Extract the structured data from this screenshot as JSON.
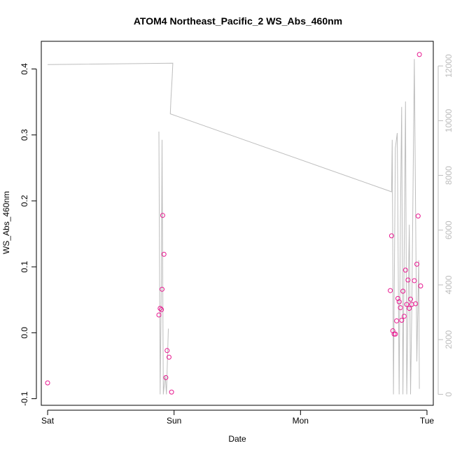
{
  "chart_data": {
    "type": "scatter",
    "title": "ATOM4 Northeast_Pacific_2 WS_Abs_460nm",
    "xlabel": "Date",
    "ylabel": "WS_Abs_460nm",
    "x_ticks": [
      "Sat",
      "Sun",
      "Mon",
      "Tue"
    ],
    "x_tick_values": [
      0,
      1,
      2,
      3
    ],
    "xlim": [
      -0.05,
      3.05
    ],
    "ylim": [
      -0.11,
      0.442
    ],
    "y_ticks": [
      -0.1,
      0.0,
      0.1,
      0.2,
      0.3,
      0.4
    ],
    "y_tick_labels": [
      "-0.1",
      "0.0",
      "0.1",
      "0.2",
      "0.3",
      "0.4"
    ],
    "y2lim": [
      -400,
      12900
    ],
    "y2_ticks": [
      0,
      2000,
      4000,
      6000,
      8000,
      10000,
      12000
    ],
    "y2_tick_labels": [
      "0",
      "2000",
      "4000",
      "6000",
      "8000",
      "10000",
      "12000"
    ],
    "grid": false,
    "series": [
      {
        "marker": "open-circle",
        "color": "#e8178f",
        "axis": "left",
        "points": [
          [
            0.0,
            -0.076
          ],
          [
            0.88,
            0.027
          ],
          [
            0.89,
            0.037
          ],
          [
            0.9,
            0.035
          ],
          [
            0.905,
            0.066
          ],
          [
            0.91,
            0.178
          ],
          [
            0.92,
            0.119
          ],
          [
            0.935,
            -0.068
          ],
          [
            0.945,
            -0.027
          ],
          [
            0.96,
            -0.037
          ],
          [
            0.98,
            -0.09
          ],
          [
            2.72,
            0.147
          ],
          [
            2.71,
            0.064
          ],
          [
            2.73,
            0.003
          ],
          [
            2.74,
            -0.002
          ],
          [
            2.75,
            -0.002
          ],
          [
            2.76,
            0.018
          ],
          [
            2.77,
            0.052
          ],
          [
            2.78,
            0.047
          ],
          [
            2.79,
            0.038
          ],
          [
            2.8,
            0.019
          ],
          [
            2.81,
            0.063
          ],
          [
            2.82,
            0.025
          ],
          [
            2.83,
            0.095
          ],
          [
            2.84,
            0.043
          ],
          [
            2.85,
            0.08
          ],
          [
            2.86,
            0.037
          ],
          [
            2.87,
            0.051
          ],
          [
            2.88,
            0.043
          ],
          [
            2.9,
            0.079
          ],
          [
            2.91,
            0.044
          ],
          [
            2.92,
            0.104
          ],
          [
            2.93,
            0.177
          ],
          [
            2.94,
            0.422
          ],
          [
            2.95,
            0.071
          ]
        ]
      },
      {
        "color": "#bdbdbd",
        "axis": "right",
        "line": true,
        "points": [
          [
            0.0,
            12050
          ],
          [
            0.99,
            12100
          ],
          [
            0.985,
            11600
          ],
          [
            0.975,
            10800
          ],
          [
            0.97,
            10250
          ],
          [
            2.72,
            7400
          ],
          [
            2.725,
            9300
          ],
          [
            2.735,
            0
          ],
          [
            2.75,
            9000
          ],
          [
            2.765,
            9550
          ],
          [
            2.78,
            0
          ],
          [
            2.79,
            6300
          ],
          [
            2.8,
            10500
          ],
          [
            2.81,
            0
          ],
          [
            2.83,
            10700
          ],
          [
            2.84,
            0
          ],
          [
            2.86,
            6200
          ],
          [
            2.87,
            0
          ],
          [
            2.88,
            3100
          ],
          [
            2.9,
            12250
          ],
          [
            2.92,
            1200
          ],
          [
            2.935,
            4900
          ],
          [
            2.94,
            200
          ]
        ]
      },
      {
        "color": "#bdbdbd",
        "axis": "right",
        "line": true,
        "points": [
          [
            0.88,
            9600
          ],
          [
            0.89,
            0
          ],
          [
            0.9,
            4300
          ],
          [
            0.905,
            9300
          ],
          [
            0.915,
            0
          ],
          [
            0.93,
            700
          ],
          [
            0.94,
            0
          ],
          [
            0.955,
            2400
          ]
        ]
      }
    ]
  }
}
